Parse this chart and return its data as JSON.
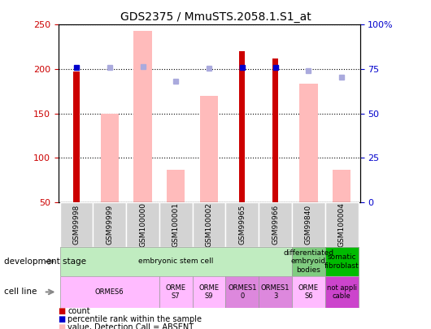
{
  "title": "GDS2375 / MmuSTS.2058.1.S1_at",
  "samples": [
    "GSM99998",
    "GSM99999",
    "GSM100000",
    "GSM100001",
    "GSM100002",
    "GSM99965",
    "GSM99966",
    "GSM99840",
    "GSM100004"
  ],
  "count_values": [
    197,
    null,
    null,
    null,
    null,
    220,
    212,
    null,
    null
  ],
  "absent_bar_values": [
    null,
    150,
    243,
    87,
    170,
    null,
    null,
    184,
    87
  ],
  "percentile_rank": [
    76,
    null,
    null,
    null,
    null,
    76,
    76,
    null,
    null
  ],
  "absent_rank_values": [
    null,
    202,
    203,
    186,
    201,
    null,
    null,
    198,
    191
  ],
  "ylim_left": [
    50,
    250
  ],
  "ylim_right": [
    0,
    100
  ],
  "left_ticks": [
    50,
    100,
    150,
    200,
    250
  ],
  "right_ticks": [
    0,
    25,
    50,
    75,
    100
  ],
  "right_tick_labels": [
    "0",
    "25",
    "50",
    "75",
    "100%"
  ],
  "dev_groups": [
    {
      "label": "embryonic stem cell",
      "start": 0,
      "end": 7,
      "color": "#c0ecc0"
    },
    {
      "label": "differentiated\nembryoid\nbodies",
      "start": 7,
      "end": 8,
      "color": "#80cc80"
    },
    {
      "label": "somatic\nfibroblast",
      "start": 8,
      "end": 9,
      "color": "#00bb00"
    }
  ],
  "cell_groups": [
    {
      "label": "ORMES6",
      "start": 0,
      "end": 3,
      "color": "#ffbbff"
    },
    {
      "label": "ORME\nS7",
      "start": 3,
      "end": 4,
      "color": "#ffbbff"
    },
    {
      "label": "ORME\nS9",
      "start": 4,
      "end": 5,
      "color": "#ffbbff"
    },
    {
      "label": "ORMES1\n0",
      "start": 5,
      "end": 6,
      "color": "#dd88dd"
    },
    {
      "label": "ORMES1\n3",
      "start": 6,
      "end": 7,
      "color": "#dd88dd"
    },
    {
      "label": "ORME\nS6",
      "start": 7,
      "end": 8,
      "color": "#ffbbff"
    },
    {
      "label": "not appli\ncable",
      "start": 8,
      "end": 9,
      "color": "#cc44cc"
    }
  ],
  "count_color": "#cc0000",
  "absent_bar_color": "#ffbbbb",
  "percentile_color": "#0000cc",
  "absent_rank_color": "#aaaadd",
  "grid_color": "#888888",
  "sample_box_color": "#cccccc",
  "left_tick_color": "#cc0000",
  "right_tick_color": "#0000cc"
}
